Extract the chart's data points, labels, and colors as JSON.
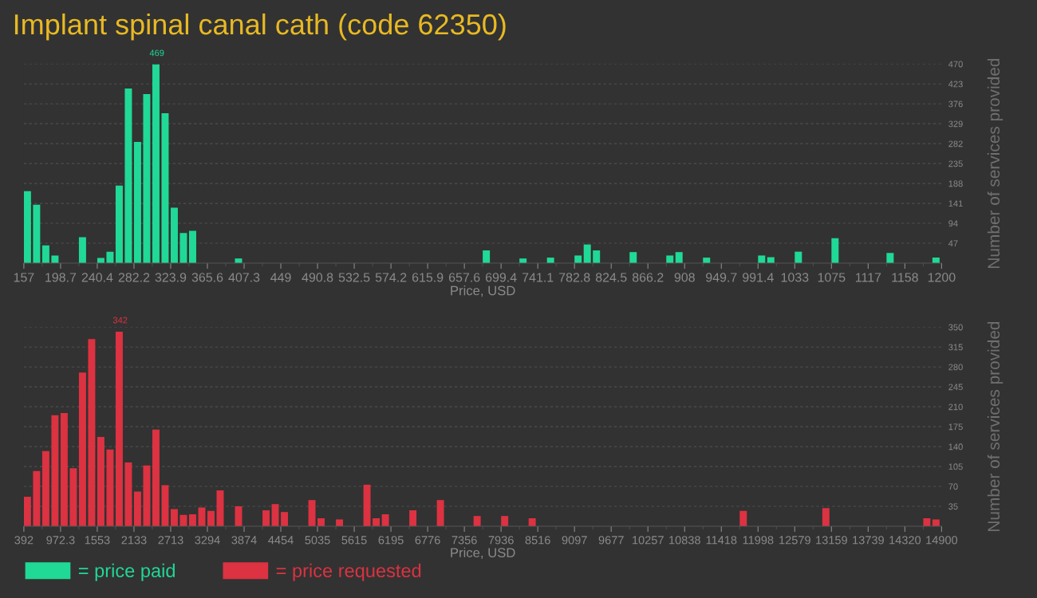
{
  "chart_data": [
    {
      "type": "histogram",
      "title": "Implant spinal canal cath (code 62350)",
      "xlabel": "Price, USD",
      "ylabel": "Number of services provided",
      "legend": "bottom left",
      "grid": "y",
      "bins": [
        157,
        167.43,
        177.86,
        188.29,
        198.72,
        209.15,
        219.58,
        230.01,
        240.44,
        250.87,
        261.3,
        271.73,
        282.16,
        292.59,
        303.02,
        313.45,
        323.88,
        334.31,
        344.74,
        355.17,
        365.6,
        376.03,
        386.46,
        396.89,
        407.32,
        417.75,
        428.18,
        438.61,
        449.04,
        459.47,
        469.9,
        480.33,
        490.76,
        501.19,
        511.62,
        522.05,
        532.48,
        542.91,
        553.34,
        563.77,
        574.2,
        584.63,
        595.06,
        605.49,
        615.92,
        626.35,
        636.78,
        647.21,
        657.64,
        668.07,
        678.5,
        688.93,
        699.36,
        709.79,
        720.22,
        730.65,
        741.08,
        751.51,
        761.94,
        772.37,
        782.8,
        793.23,
        803.66,
        814.09,
        824.52,
        834.95,
        845.38,
        855.81,
        866.24,
        876.67,
        887.1,
        897.53,
        907.96,
        918.39,
        928.82,
        939.25,
        949.68,
        960.11,
        970.54,
        980.97,
        991.4,
        1001.83,
        1012.26,
        1022.69,
        1033.12,
        1043.55,
        1053.98,
        1064.41,
        1074.84,
        1085.27,
        1095.7,
        1106.13,
        1116.56,
        1126.99,
        1137.42,
        1147.85,
        1158.28,
        1168.71,
        1179.14,
        1189.57,
        1200
      ],
      "series": [
        {
          "name": "= price paid",
          "color": "#20d997",
          "values": [
            170,
            138,
            42,
            18,
            0,
            0,
            61,
            0,
            12,
            27,
            183,
            412,
            286,
            399,
            469,
            354,
            131,
            71,
            76,
            0,
            0,
            0,
            0,
            11,
            0,
            0,
            0,
            0,
            0,
            0,
            0,
            0,
            0,
            0,
            0,
            0,
            0,
            0,
            0,
            0,
            0,
            0,
            0,
            0,
            0,
            0,
            0,
            0,
            0,
            0,
            30,
            0,
            0,
            0,
            11,
            0,
            0,
            13,
            0,
            0,
            18,
            44,
            30,
            0,
            0,
            0,
            26,
            0,
            0,
            0,
            18,
            26,
            0,
            0,
            13,
            0,
            0,
            0,
            0,
            0,
            18,
            14,
            0,
            0,
            27,
            0,
            0,
            0,
            59,
            0,
            0,
            0,
            0,
            0,
            24,
            0,
            0,
            0,
            0,
            13
          ]
        }
      ],
      "annotations": [
        {
          "text": "469",
          "x": 308.2,
          "y": 469
        }
      ],
      "xlim": [
        157,
        1200
      ],
      "xticks": [
        157,
        {
          "value": 198.72,
          "label": "198.7"
        },
        {
          "value": 240.44,
          "label": "240.4"
        },
        {
          "value": 282.16,
          "label": "282.2"
        },
        {
          "value": 323.88,
          "label": "323.9"
        },
        {
          "value": 365.6,
          "label": "365.6"
        },
        {
          "value": 407.32,
          "label": "407.3"
        },
        {
          "value": 449.04,
          "label": "449"
        },
        {
          "value": 490.76,
          "label": "490.8"
        },
        {
          "value": 532.48,
          "label": "532.5"
        },
        {
          "value": 574.2,
          "label": "574.2"
        },
        {
          "value": 615.92,
          "label": "615.9"
        },
        {
          "value": 657.64,
          "label": "657.6"
        },
        {
          "value": 699.36,
          "label": "699.4"
        },
        {
          "value": 741.08,
          "label": "741.1"
        },
        {
          "value": 782.8,
          "label": "782.8"
        },
        {
          "value": 824.52,
          "label": "824.5"
        },
        {
          "value": 866.24,
          "label": "866.2"
        },
        {
          "value": 907.96,
          "label": "908"
        },
        {
          "value": 949.68,
          "label": "949.7"
        },
        {
          "value": 991.4,
          "label": "991.4"
        },
        {
          "value": 1033.12,
          "label": "1033"
        },
        {
          "value": 1074.84,
          "label": "1075"
        },
        {
          "value": 1116.56,
          "label": "1117"
        },
        {
          "value": 1158.28,
          "label": "1158"
        },
        1200
      ],
      "ylim": [
        0,
        470
      ],
      "yticks": [
        47,
        94,
        141,
        188,
        235,
        282,
        329,
        376,
        423,
        470
      ]
    },
    {
      "type": "histogram",
      "xlabel": "Price, USD",
      "ylabel": "Number of services provided",
      "legend": "bottom left",
      "grid": "y",
      "bins": [
        392,
        537.08,
        682.16,
        827.24,
        972.32,
        1117.4,
        1262.48,
        1407.56,
        1552.64,
        1697.72,
        1842.8,
        1987.88,
        2132.96,
        2278.04,
        2423.12,
        2568.2,
        2713.28,
        2858.36,
        3003.44,
        3148.52,
        3293.6,
        3438.68,
        3583.76,
        3728.84,
        3873.92,
        4019,
        4164.08,
        4309.16,
        4454.24,
        4599.32,
        4744.4,
        4889.48,
        5034.56,
        5179.64,
        5324.72,
        5469.8,
        5614.88,
        5759.96,
        5905.04,
        6050.12,
        6195.2,
        6340.28,
        6485.36,
        6630.44,
        6775.52,
        6920.6,
        7065.68,
        7210.76,
        7355.84,
        7500.92,
        7646,
        7791.08,
        7936.16,
        8081.24,
        8226.32,
        8371.4,
        8516.48,
        8661.56,
        8806.64,
        8951.72,
        9096.8,
        9241.88,
        9386.96,
        9532.04,
        9677.12,
        9822.2,
        9967.28,
        10112.36,
        10257.44,
        10402.52,
        10547.6,
        10692.68,
        10837.76,
        10982.84,
        11127.92,
        11273,
        11418.08,
        11563.16,
        11708.24,
        11853.32,
        11998.4,
        12143.48,
        12288.56,
        12433.64,
        12578.72,
        12723.8,
        12868.88,
        13013.96,
        13159.04,
        13304.12,
        13449.2,
        13594.28,
        13739.36,
        13884.44,
        14029.52,
        14174.6,
        14319.68,
        14464.76,
        14609.84,
        14754.92,
        14900
      ],
      "series": [
        {
          "name": "= price requested",
          "color": "#dc3241",
          "values": [
            52,
            97,
            132,
            195,
            199,
            102,
            270,
            329,
            157,
            135,
            342,
            112,
            61,
            107,
            170,
            72,
            30,
            20,
            21,
            33,
            27,
            63,
            0,
            35,
            0,
            0,
            28,
            39,
            25,
            0,
            0,
            46,
            14,
            0,
            12,
            0,
            0,
            73,
            14,
            21,
            0,
            0,
            28,
            0,
            0,
            46,
            0,
            0,
            0,
            18,
            0,
            0,
            18,
            0,
            0,
            14,
            0,
            0,
            0,
            0,
            0,
            0,
            0,
            0,
            0,
            0,
            0,
            0,
            0,
            0,
            0,
            0,
            0,
            0,
            0,
            0,
            0,
            0,
            27,
            0,
            0,
            0,
            0,
            0,
            0,
            0,
            0,
            32,
            0,
            0,
            0,
            0,
            0,
            0,
            0,
            0,
            0,
            0,
            14,
            12
          ]
        }
      ],
      "annotations": [
        {
          "text": "342",
          "x": 1915.34,
          "y": 342
        }
      ],
      "xlim": [
        392,
        14900
      ],
      "xticks": [
        392,
        {
          "value": 972.32,
          "label": "972.3"
        },
        {
          "value": 1552.64,
          "label": "1553"
        },
        {
          "value": 2132.96,
          "label": "2133"
        },
        {
          "value": 2713.28,
          "label": "2713"
        },
        {
          "value": 3293.6,
          "label": "3294"
        },
        {
          "value": 3873.92,
          "label": "3874"
        },
        {
          "value": 4454.24,
          "label": "4454"
        },
        {
          "value": 5034.56,
          "label": "5035"
        },
        {
          "value": 5614.88,
          "label": "5615"
        },
        {
          "value": 6195.2,
          "label": "6195"
        },
        {
          "value": 6775.52,
          "label": "6776"
        },
        {
          "value": 7355.84,
          "label": "7356"
        },
        {
          "value": 7936.16,
          "label": "7936"
        },
        {
          "value": 8516.48,
          "label": "8516"
        },
        {
          "value": 9096.8,
          "label": "9097"
        },
        {
          "value": 9677.12,
          "label": "9677"
        },
        {
          "value": 10257.44,
          "label": "10257"
        },
        {
          "value": 10837.76,
          "label": "10838"
        },
        {
          "value": 11418.08,
          "label": "11418"
        },
        {
          "value": 11998.4,
          "label": "11998"
        },
        {
          "value": 12578.72,
          "label": "12579"
        },
        {
          "value": 13159.04,
          "label": "13159"
        },
        {
          "value": 13739.36,
          "label": "13739"
        },
        {
          "value": 14319.68,
          "label": "14320"
        },
        14900
      ],
      "ylim": [
        0,
        350
      ],
      "yticks": [
        35,
        70,
        105,
        140,
        175,
        210,
        245,
        280,
        315,
        350
      ]
    }
  ]
}
